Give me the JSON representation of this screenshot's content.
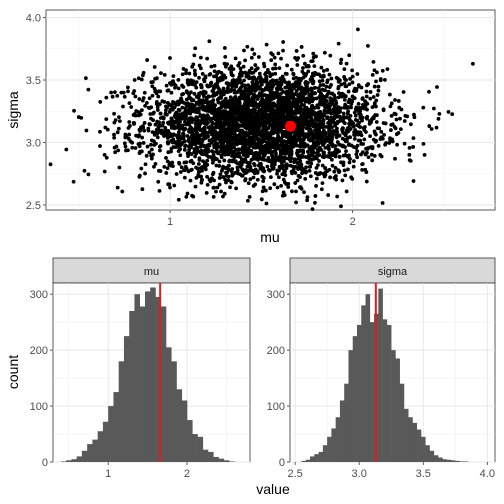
{
  "chart_data": [
    {
      "type": "scatter",
      "xlabel": "mu",
      "ylabel": "sigma",
      "xlim": [
        0.32,
        2.78
      ],
      "ylim": [
        2.46,
        4.06
      ],
      "xticks": [
        1,
        2
      ],
      "yticks": [
        2.5,
        3.0,
        3.5,
        4.0
      ],
      "xtick_labels": [
        "1",
        "2"
      ],
      "ytick_labels": [
        "2.5",
        "3.0",
        "3.5",
        "4.0"
      ],
      "grid": true,
      "point_cloud": {
        "n": 4000,
        "center": [
          1.5,
          3.15
        ],
        "sd": [
          0.32,
          0.22
        ]
      },
      "highlight_point": {
        "x": 1.66,
        "y": 3.13,
        "color": "#ff0000"
      },
      "point_color": "#000000"
    },
    {
      "type": "bar",
      "panel": "mu",
      "xlabel": "value",
      "ylabel": "count",
      "xlim": [
        0.3,
        2.8
      ],
      "ylim": [
        0,
        320
      ],
      "xticks": [
        1,
        2
      ],
      "xtick_labels": [
        "1",
        "2"
      ],
      "yticks": [
        0,
        100,
        200,
        300
      ],
      "ytick_labels": [
        "0",
        "100",
        "200",
        "300"
      ],
      "bin_start": 0.4,
      "bin_width": 0.0667,
      "counts": [
        1,
        3,
        5,
        10,
        20,
        32,
        40,
        55,
        72,
        100,
        125,
        180,
        225,
        270,
        300,
        278,
        305,
        312,
        295,
        278,
        205,
        180,
        130,
        110,
        75,
        50,
        45,
        22,
        18,
        9,
        6,
        3,
        1
      ],
      "vline": 1.66,
      "vline_color": "#e31a1c",
      "bar_color": "#595959"
    },
    {
      "type": "bar",
      "panel": "sigma",
      "xlabel": "value",
      "ylabel": "count",
      "xlim": [
        2.46,
        4.06
      ],
      "ylim": [
        0,
        320
      ],
      "xticks": [
        2.5,
        3.0,
        3.5,
        4.0
      ],
      "xtick_labels": [
        "2.5",
        "3.0",
        "3.5",
        "4.0"
      ],
      "yticks": [
        0,
        100,
        200,
        300
      ],
      "ytick_labels": [
        "0",
        "100",
        "200",
        "300"
      ],
      "bin_start": 2.55,
      "bin_width": 0.0333,
      "counts": [
        2,
        4,
        10,
        14,
        18,
        30,
        45,
        60,
        80,
        110,
        140,
        200,
        225,
        245,
        280,
        300,
        250,
        265,
        310,
        255,
        245,
        200,
        185,
        140,
        95,
        80,
        70,
        58,
        45,
        30,
        20,
        12,
        8,
        5,
        4,
        3,
        2,
        1,
        1
      ],
      "vline": 3.13,
      "vline_color": "#e31a1c",
      "bar_color": "#595959"
    }
  ],
  "facets": {
    "left_title": "mu",
    "right_title": "sigma"
  },
  "labels": {
    "bottom_x": "value",
    "bottom_y": "count"
  }
}
